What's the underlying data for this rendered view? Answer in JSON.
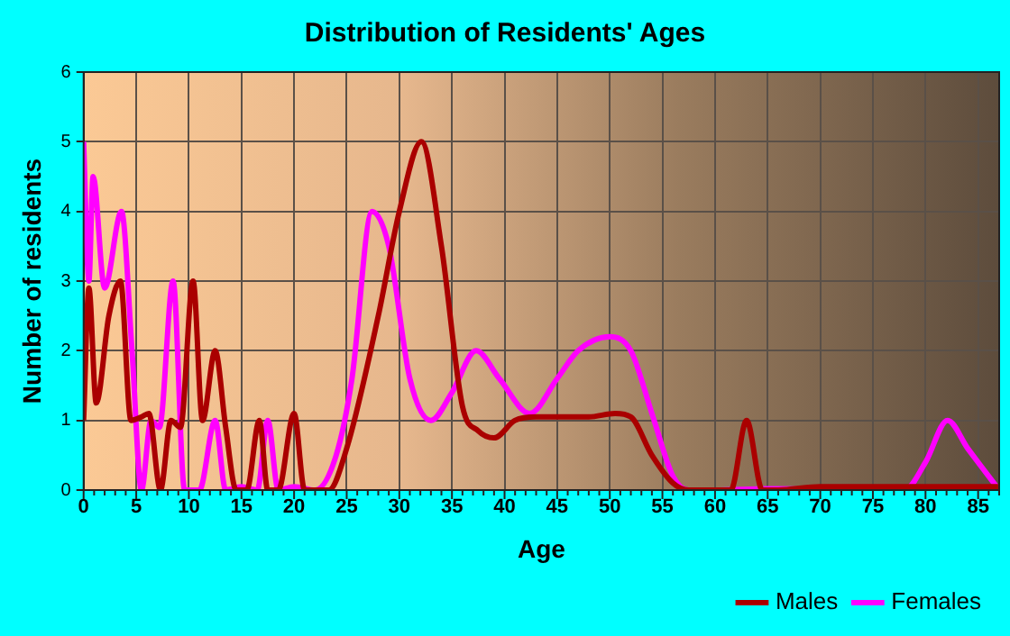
{
  "chart_data": {
    "type": "line",
    "title": "Distribution of Residents' Ages",
    "xlabel": "Age",
    "ylabel": "Number of residents",
    "xlim": [
      0,
      87
    ],
    "xticks": [
      0,
      5,
      10,
      15,
      20,
      25,
      30,
      35,
      40,
      45,
      50,
      55,
      60,
      65,
      70,
      75,
      80,
      85
    ],
    "ylim": [
      0,
      6
    ],
    "yticks": [
      0,
      1,
      2,
      3,
      4,
      5,
      6
    ],
    "grid": true,
    "legend": "bottom right",
    "marker": "none",
    "line_style": "solid",
    "series": [
      {
        "name": "Males",
        "color": "#aa0000",
        "x": [
          0,
          0.5,
          1.2,
          2.4,
          3.5,
          4.5,
          5.5,
          6.2,
          7.3,
          8.3,
          9.2,
          10.4,
          11.3,
          12.5,
          13.5,
          14.5,
          15.5,
          16.7,
          17.5,
          18.5,
          20,
          21,
          23.3,
          25,
          28,
          30,
          32.1,
          34,
          36,
          37.5,
          39,
          41,
          43,
          46,
          48,
          50.5,
          52,
          54,
          56,
          57.5,
          60,
          61.5,
          63,
          64.5,
          66,
          70,
          87
        ],
        "values": [
          1,
          2.9,
          1.25,
          2.5,
          3,
          1,
          1.05,
          1.1,
          0,
          1,
          0.9,
          3,
          1,
          2,
          0.9,
          0,
          0,
          1,
          0,
          0,
          1.1,
          0,
          0,
          0.6,
          2.5,
          4,
          5,
          3.5,
          1.2,
          0.85,
          0.75,
          1,
          1.05,
          1.05,
          1.05,
          1.1,
          1.05,
          0.5,
          0.1,
          0,
          0,
          0,
          1,
          0,
          0,
          0.05,
          0.05
        ]
      },
      {
        "name": "Females",
        "color": "#ff00ff",
        "x": [
          0,
          0.5,
          0.9,
          2,
          3.6,
          4.6,
          5.5,
          6.4,
          7.2,
          8.5,
          9.6,
          11,
          12.5,
          13.5,
          15,
          16.5,
          17.5,
          18.5,
          20,
          22,
          24,
          25.5,
          27.4,
          29,
          31,
          33,
          35,
          37.3,
          39.5,
          42.4,
          45,
          47,
          50,
          52,
          54,
          56,
          57.5,
          60,
          65,
          78,
          80,
          82.1,
          84,
          87
        ],
        "values": [
          5,
          3,
          4.5,
          2.9,
          4,
          2,
          0,
          1,
          0.9,
          3,
          0,
          0,
          1,
          0,
          0.05,
          0,
          1,
          0,
          0.05,
          0,
          0.5,
          1.6,
          4,
          3.5,
          1.6,
          1,
          1.4,
          2,
          1.6,
          1.1,
          1.6,
          2,
          2.2,
          2,
          1.1,
          0.2,
          0,
          0,
          0.02,
          0,
          0.4,
          1,
          0.6,
          0
        ]
      }
    ]
  }
}
